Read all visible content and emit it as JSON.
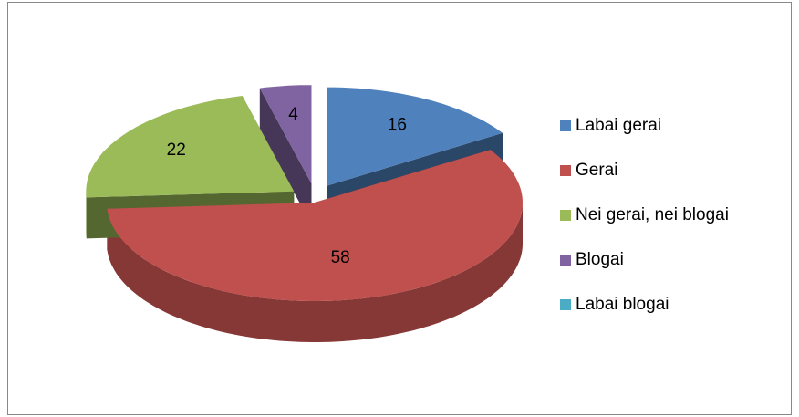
{
  "chart_data": {
    "type": "pie",
    "categories": [
      "Labai gerai",
      "Gerai",
      "Nei gerai, nei blogai",
      "Blogai",
      "Labai blogai"
    ],
    "values": [
      16,
      58,
      22,
      4,
      0
    ],
    "colors": [
      "#4f81bd",
      "#c0504d",
      "#9bbb59",
      "#8064a2",
      "#4bacc6"
    ],
    "legend": "right"
  }
}
